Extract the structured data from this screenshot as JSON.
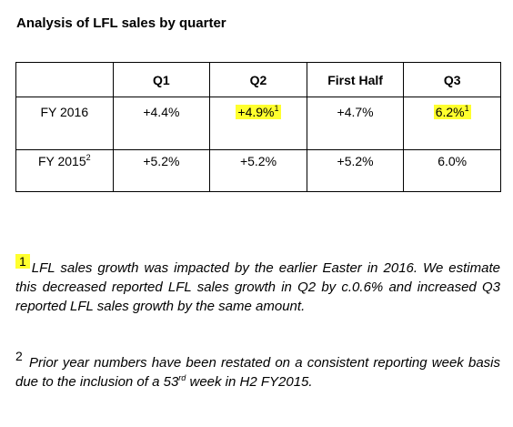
{
  "title": "Analysis of LFL sales by quarter",
  "table": {
    "headers": [
      "",
      "Q1",
      "Q2",
      "First Half",
      "Q3"
    ],
    "rows": [
      {
        "label": "FY 2016",
        "label_sup": "",
        "cells": [
          {
            "value": "+4.4%",
            "sup": "",
            "highlight": false
          },
          {
            "value": "+4.9%",
            "sup": "1",
            "highlight": true
          },
          {
            "value": "+4.7%",
            "sup": "",
            "highlight": false
          },
          {
            "value": "6.2%",
            "sup": "1",
            "highlight": true
          }
        ]
      },
      {
        "label": "FY 2015",
        "label_sup": "2",
        "cells": [
          {
            "value": "+5.2%",
            "sup": "",
            "highlight": false
          },
          {
            "value": "+5.2%",
            "sup": "",
            "highlight": false
          },
          {
            "value": "+5.2%",
            "sup": "",
            "highlight": false
          },
          {
            "value": "6.0%",
            "sup": "",
            "highlight": false
          }
        ]
      }
    ]
  },
  "footnotes": {
    "note1": {
      "marker": "1",
      "text": "LFL sales growth was impacted by the earlier Easter in 2016.  We estimate this decreased reported LFL sales growth in Q2 by c.0.6% and increased Q3 reported LFL sales growth by the same amount."
    },
    "note2": {
      "marker": "2",
      "text_before": "Prior year numbers have been restated on a consistent reporting week basis due to the inclusion of a 53",
      "ordinal": "rd",
      "text_after": " week in H2 FY2015."
    }
  },
  "colors": {
    "highlight": "#ffff2e"
  }
}
